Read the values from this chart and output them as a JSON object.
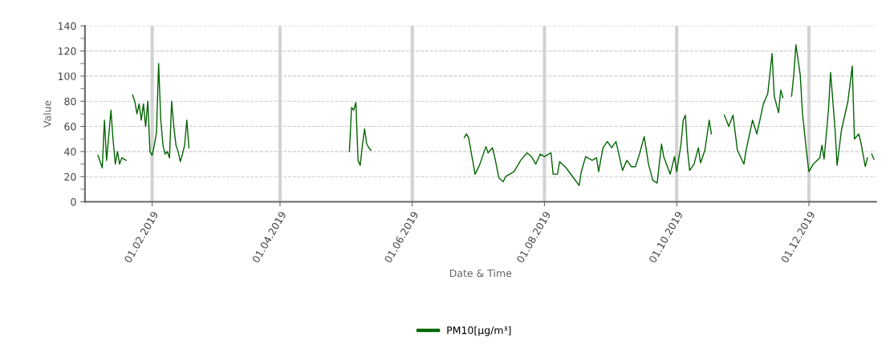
{
  "chart_data": {
    "type": "line",
    "xlabel": "Date & Time",
    "ylabel": "Value",
    "x": [
      "2019-01-07",
      "2019-01-09",
      "2019-01-10",
      "2019-01-11",
      "2019-01-13",
      "2019-01-14",
      "2019-01-15",
      "2019-01-16",
      "2019-01-17",
      "2019-01-18",
      "2019-01-20",
      "2019-01-21",
      "2019-01-23",
      "2019-01-24",
      "2019-01-25",
      "2019-01-26",
      "2019-01-27",
      "2019-01-28",
      "2019-01-29",
      "2019-01-30",
      "2019-01-31",
      "2019-02-01",
      "2019-02-02",
      "2019-02-03",
      "2019-02-04",
      "2019-02-05",
      "2019-02-06",
      "2019-02-07",
      "2019-02-08",
      "2019-02-09",
      "2019-02-10",
      "2019-02-11",
      "2019-02-12",
      "2019-02-13",
      "2019-02-14",
      "2019-02-15",
      "2019-02-16",
      "2019-02-17",
      "2019-02-18",
      "2019-02-20",
      "2019-05-03",
      "2019-05-04",
      "2019-05-05",
      "2019-05-06",
      "2019-05-07",
      "2019-05-08",
      "2019-05-09",
      "2019-05-10",
      "2019-05-11",
      "2019-05-12",
      "2019-05-13",
      "2019-05-15",
      "2019-06-25",
      "2019-06-26",
      "2019-06-27",
      "2019-06-30",
      "2019-07-02",
      "2019-07-05",
      "2019-07-06",
      "2019-07-08",
      "2019-07-09",
      "2019-07-11",
      "2019-07-13",
      "2019-07-14",
      "2019-07-18",
      "2019-07-21",
      "2019-07-24",
      "2019-07-26",
      "2019-07-28",
      "2019-07-30",
      "2019-08-01",
      "2019-08-04",
      "2019-08-05",
      "2019-08-07",
      "2019-08-08",
      "2019-08-11",
      "2019-08-14",
      "2019-08-17",
      "2019-08-18",
      "2019-08-20",
      "2019-08-23",
      "2019-08-25",
      "2019-08-26",
      "2019-08-28",
      "2019-08-30",
      "2019-09-01",
      "2019-09-03",
      "2019-09-06",
      "2019-09-08",
      "2019-09-10",
      "2019-09-12",
      "2019-09-14",
      "2019-09-16",
      "2019-09-18",
      "2019-09-20",
      "2019-09-22",
      "2019-09-24",
      "2019-09-25",
      "2019-09-28",
      "2019-09-30",
      "2019-10-01",
      "2019-10-03",
      "2019-10-04",
      "2019-10-05",
      "2019-10-06",
      "2019-10-07",
      "2019-10-09",
      "2019-10-11",
      "2019-10-12",
      "2019-10-14",
      "2019-10-16",
      "2019-10-17",
      "2019-10-19",
      "2019-10-23",
      "2019-10-25",
      "2019-10-27",
      "2019-10-29",
      "2019-11-01",
      "2019-11-02",
      "2019-11-05",
      "2019-11-07",
      "2019-11-10",
      "2019-11-12",
      "2019-11-14",
      "2019-11-15",
      "2019-11-17",
      "2019-11-18",
      "2019-11-19",
      "2019-11-21",
      "2019-11-23",
      "2019-11-24",
      "2019-11-25",
      "2019-11-27",
      "2019-11-28",
      "2019-11-30",
      "2019-12-01",
      "2019-12-03",
      "2019-12-06",
      "2019-12-07",
      "2019-12-08",
      "2019-12-10",
      "2019-12-11",
      "2019-12-13",
      "2019-12-14",
      "2019-12-16",
      "2019-12-19",
      "2019-12-21",
      "2019-12-22",
      "2019-12-24",
      "2019-12-25",
      "2019-12-27",
      "2019-12-28",
      "2019-12-29",
      "2019-12-30",
      "2019-12-31"
    ],
    "series": [
      {
        "name": "PM10[µg/m³]",
        "color": "#006400",
        "values": [
          37,
          27,
          65,
          33,
          73,
          49,
          30,
          40,
          30,
          35,
          33,
          null,
          85,
          80,
          70,
          78,
          65,
          78,
          60,
          80,
          40,
          37,
          45,
          55,
          110,
          65,
          45,
          38,
          40,
          35,
          80,
          60,
          45,
          40,
          32,
          38,
          45,
          65,
          43,
          null,
          40,
          75,
          73,
          79,
          33,
          29,
          45,
          58,
          46,
          43,
          41,
          null,
          51,
          54,
          51,
          22,
          29,
          44,
          39,
          43,
          36,
          19,
          16,
          20,
          24,
          33,
          39,
          36,
          30,
          38,
          36,
          39,
          22,
          22,
          32,
          27,
          20,
          13,
          24,
          36,
          33,
          35,
          24,
          43,
          48,
          43,
          48,
          25,
          33,
          28,
          28,
          39,
          52,
          30,
          17,
          15,
          46,
          36,
          22,
          36,
          24,
          46,
          65,
          69,
          41,
          25,
          30,
          43,
          31,
          41,
          65,
          54,
          null,
          69,
          60,
          69,
          41,
          30,
          41,
          65,
          54,
          78,
          86,
          118,
          84,
          71,
          89,
          83,
          null,
          84,
          101,
          125,
          101,
          71,
          38,
          24,
          30,
          35,
          45,
          34,
          73,
          103,
          59,
          29,
          57,
          80,
          108,
          50,
          54,
          47,
          28,
          35,
          null,
          38,
          34
        ]
      }
    ],
    "xlim": [
      "2019-01-01",
      "2020-01-01"
    ],
    "xticks": [
      {
        "value": "2019-02-01",
        "label": "01.02.2019"
      },
      {
        "value": "2019-04-01",
        "label": "01.04.2019"
      },
      {
        "value": "2019-06-01",
        "label": "01.06.2019"
      },
      {
        "value": "2019-08-01",
        "label": "01.08.2019"
      },
      {
        "value": "2019-10-01",
        "label": "01.10.2019"
      },
      {
        "value": "2019-12-01",
        "label": "01.12.2019"
      }
    ],
    "ylim": [
      0,
      140
    ],
    "yticks": [
      0,
      20,
      40,
      60,
      80,
      100,
      120,
      140
    ],
    "grid": true,
    "legend": "bottom",
    "marker": "none",
    "line_style": "solid"
  }
}
